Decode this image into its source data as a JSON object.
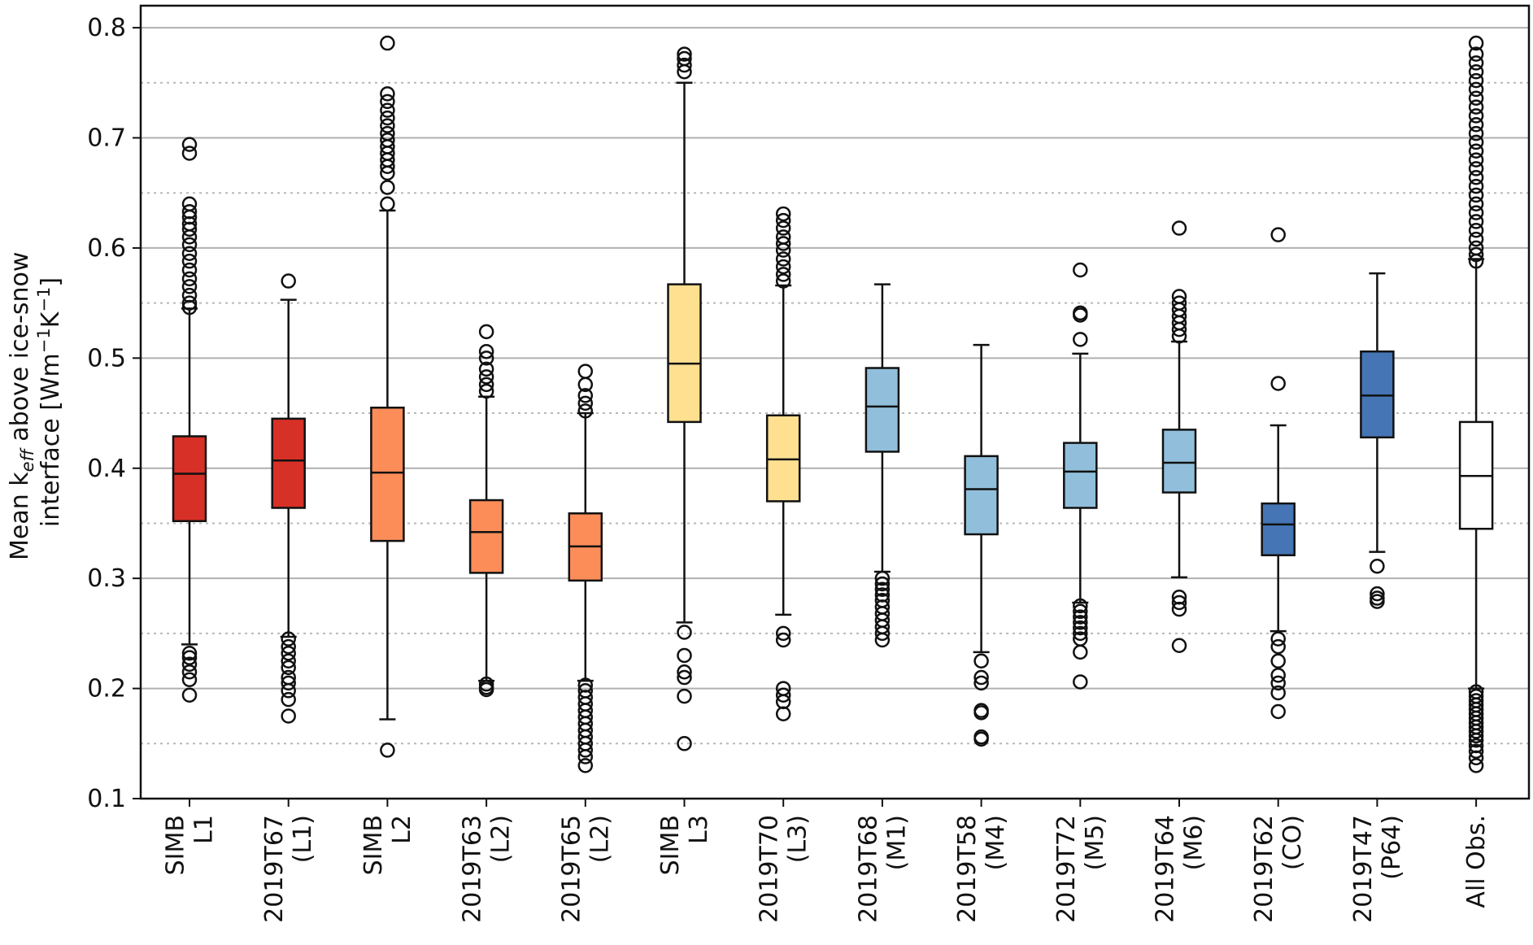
{
  "chart_data": {
    "type": "box",
    "title": "",
    "ylabel_line1_pre": "Mean k",
    "ylabel_line1_sub": "eff",
    "ylabel_line1_post": " above ice-snow",
    "ylabel_line2_pre": "interface [Wm",
    "ylabel_line2_sup1": "−1",
    "ylabel_line2_mid": "K",
    "ylabel_line2_sup2": "−1",
    "ylabel_line2_post": "]",
    "ylim": [
      0.1,
      0.82
    ],
    "yticks": [
      "0.1",
      "0.2",
      "0.3",
      "0.4",
      "0.5",
      "0.6",
      "0.7",
      "0.8"
    ],
    "grid": {
      "major": "solid",
      "minor": "dotted"
    },
    "boxes": [
      {
        "label": [
          "SIMB",
          "L1"
        ],
        "color": "#d73027",
        "q1": 0.352,
        "median": 0.395,
        "q3": 0.429,
        "whisker_low": 0.24,
        "whisker_high": 0.545,
        "outliers": [
          0.694,
          0.686,
          0.64,
          0.633,
          0.628,
          0.622,
          0.617,
          0.61,
          0.603,
          0.595,
          0.588,
          0.58,
          0.572,
          0.565,
          0.557,
          0.55,
          0.546,
          0.232,
          0.228,
          0.222,
          0.215,
          0.208,
          0.194
        ]
      },
      {
        "label": [
          "2019T67",
          "(L1)"
        ],
        "color": "#d73027",
        "q1": 0.364,
        "median": 0.407,
        "q3": 0.445,
        "whisker_low": 0.247,
        "whisker_high": 0.553,
        "outliers": [
          0.57,
          0.245,
          0.238,
          0.232,
          0.225,
          0.219,
          0.21,
          0.205,
          0.198,
          0.19,
          0.175
        ]
      },
      {
        "label": [
          "SIMB",
          "L2"
        ],
        "color": "#fc8d59",
        "q1": 0.334,
        "median": 0.396,
        "q3": 0.455,
        "whisker_low": 0.172,
        "whisker_high": 0.634,
        "outliers": [
          0.786,
          0.74,
          0.733,
          0.725,
          0.718,
          0.711,
          0.704,
          0.698,
          0.692,
          0.686,
          0.68,
          0.674,
          0.668,
          0.655,
          0.64,
          0.144
        ]
      },
      {
        "label": [
          "2019T63",
          "(L2)"
        ],
        "color": "#fc8d59",
        "q1": 0.305,
        "median": 0.342,
        "q3": 0.371,
        "whisker_low": 0.207,
        "whisker_high": 0.465,
        "outliers": [
          0.524,
          0.506,
          0.5,
          0.49,
          0.483,
          0.476,
          0.47,
          0.204,
          0.201,
          0.199
        ]
      },
      {
        "label": [
          "2019T65",
          "(L2)"
        ],
        "color": "#fc8d59",
        "q1": 0.298,
        "median": 0.329,
        "q3": 0.359,
        "whisker_low": 0.207,
        "whisker_high": 0.45,
        "outliers": [
          0.488,
          0.476,
          0.466,
          0.459,
          0.452,
          0.203,
          0.198,
          0.192,
          0.186,
          0.18,
          0.174,
          0.168,
          0.162,
          0.156,
          0.15,
          0.144,
          0.138,
          0.13
        ]
      },
      {
        "label": [
          "SIMB",
          "L3"
        ],
        "color": "#fee090",
        "q1": 0.442,
        "median": 0.495,
        "q3": 0.567,
        "whisker_low": 0.26,
        "whisker_high": 0.75,
        "outliers": [
          0.776,
          0.772,
          0.766,
          0.76,
          0.251,
          0.23,
          0.215,
          0.21,
          0.193,
          0.15
        ]
      },
      {
        "label": [
          "2019T70",
          "(L3)"
        ],
        "color": "#fee090",
        "q1": 0.37,
        "median": 0.408,
        "q3": 0.448,
        "whisker_low": 0.267,
        "whisker_high": 0.566,
        "outliers": [
          0.631,
          0.625,
          0.618,
          0.61,
          0.604,
          0.598,
          0.59,
          0.583,
          0.576,
          0.57,
          0.25,
          0.244,
          0.2,
          0.194,
          0.188,
          0.177
        ]
      },
      {
        "label": [
          "2019T68",
          "(M1)"
        ],
        "color": "#91bfdb",
        "q1": 0.415,
        "median": 0.456,
        "q3": 0.491,
        "whisker_low": 0.306,
        "whisker_high": 0.567,
        "outliers": [
          0.3,
          0.295,
          0.29,
          0.285,
          0.28,
          0.274,
          0.268,
          0.262,
          0.256,
          0.25,
          0.244
        ]
      },
      {
        "label": [
          "2019T58",
          "(M4)"
        ],
        "color": "#91bfdb",
        "q1": 0.34,
        "median": 0.381,
        "q3": 0.411,
        "whisker_low": 0.233,
        "whisker_high": 0.512,
        "outliers": [
          0.225,
          0.21,
          0.205,
          0.18,
          0.178,
          0.156,
          0.154
        ]
      },
      {
        "label": [
          "2019T72",
          "(M5)"
        ],
        "color": "#91bfdb",
        "q1": 0.364,
        "median": 0.397,
        "q3": 0.423,
        "whisker_low": 0.278,
        "whisker_high": 0.504,
        "outliers": [
          0.58,
          0.541,
          0.539,
          0.517,
          0.275,
          0.27,
          0.265,
          0.26,
          0.255,
          0.25,
          0.245,
          0.233,
          0.206
        ]
      },
      {
        "label": [
          "2019T64",
          "(M6)"
        ],
        "color": "#91bfdb",
        "q1": 0.378,
        "median": 0.405,
        "q3": 0.435,
        "whisker_low": 0.301,
        "whisker_high": 0.515,
        "outliers": [
          0.618,
          0.556,
          0.55,
          0.544,
          0.538,
          0.532,
          0.526,
          0.52,
          0.283,
          0.278,
          0.272,
          0.239
        ]
      },
      {
        "label": [
          "2019T62",
          "(CO)"
        ],
        "color": "#4575b4",
        "q1": 0.321,
        "median": 0.349,
        "q3": 0.368,
        "whisker_low": 0.252,
        "whisker_high": 0.439,
        "outliers": [
          0.612,
          0.477,
          0.245,
          0.238,
          0.225,
          0.212,
          0.205,
          0.196,
          0.179
        ]
      },
      {
        "label": [
          "2019T47",
          "(P64)"
        ],
        "color": "#4575b4",
        "q1": 0.428,
        "median": 0.466,
        "q3": 0.506,
        "whisker_low": 0.324,
        "whisker_high": 0.577,
        "outliers": [
          0.311,
          0.286,
          0.282,
          0.279
        ]
      },
      {
        "label": [
          "All Obs."
        ],
        "color": "#ffffff",
        "q1": 0.345,
        "median": 0.393,
        "q3": 0.442,
        "whisker_low": 0.2,
        "whisker_high": 0.59,
        "outliers": [
          0.786,
          0.776,
          0.768,
          0.76,
          0.752,
          0.744,
          0.736,
          0.728,
          0.72,
          0.712,
          0.704,
          0.696,
          0.688,
          0.68,
          0.672,
          0.664,
          0.656,
          0.648,
          0.64,
          0.632,
          0.624,
          0.616,
          0.608,
          0.6,
          0.594,
          0.588,
          0.197,
          0.193,
          0.189,
          0.185,
          0.181,
          0.177,
          0.173,
          0.169,
          0.165,
          0.161,
          0.157,
          0.153,
          0.148,
          0.143,
          0.137,
          0.13
        ]
      }
    ]
  }
}
